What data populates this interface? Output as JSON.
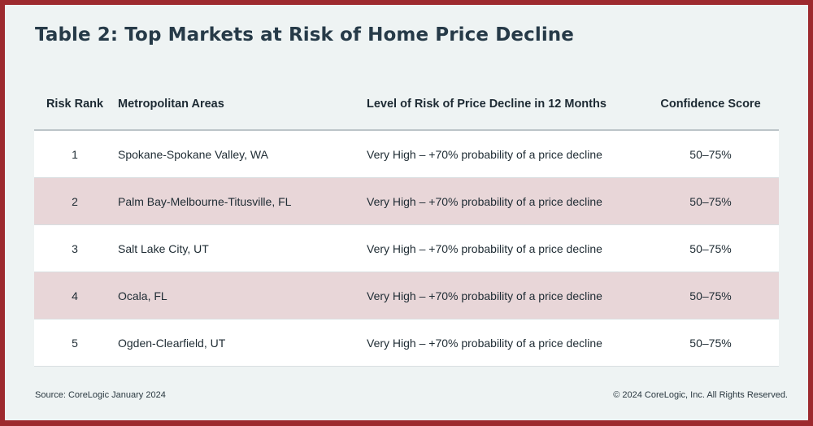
{
  "title": "Table 2: Top Markets at Risk of Home Price Decline",
  "columns": [
    "Risk Rank",
    "Metropolitan Areas",
    "Level of Risk of Price Decline in 12 Months",
    "Confidence Score"
  ],
  "rows": [
    {
      "rank": "1",
      "metro": "Spokane-Spokane Valley, WA",
      "level": "Very High – +70% probability of a price decline",
      "confidence": "50–75%"
    },
    {
      "rank": "2",
      "metro": "Palm Bay-Melbourne-Titusville, FL",
      "level": "Very High – +70% probability of a price decline",
      "confidence": "50–75%"
    },
    {
      "rank": "3",
      "metro": "Salt Lake City, UT",
      "level": "Very High – +70% probability of a price decline",
      "confidence": "50–75%"
    },
    {
      "rank": "4",
      "metro": "Ocala, FL",
      "level": "Very High – +70% probability of a price decline",
      "confidence": "50–75%"
    },
    {
      "rank": "5",
      "metro": "Ogden-Clearfield, UT",
      "level": "Very High – +70% probability of a price decline",
      "confidence": "50–75%"
    }
  ],
  "footer": {
    "source": "Source: CoreLogic January 2024",
    "copyright": "© 2024 CoreLogic, Inc. All Rights Reserved."
  },
  "colors": {
    "frame": "#9d2a2e",
    "panel": "#eef3f3",
    "title": "#263a48",
    "row_alt": "#e8d6d8",
    "row_plain": "#ffffff"
  }
}
